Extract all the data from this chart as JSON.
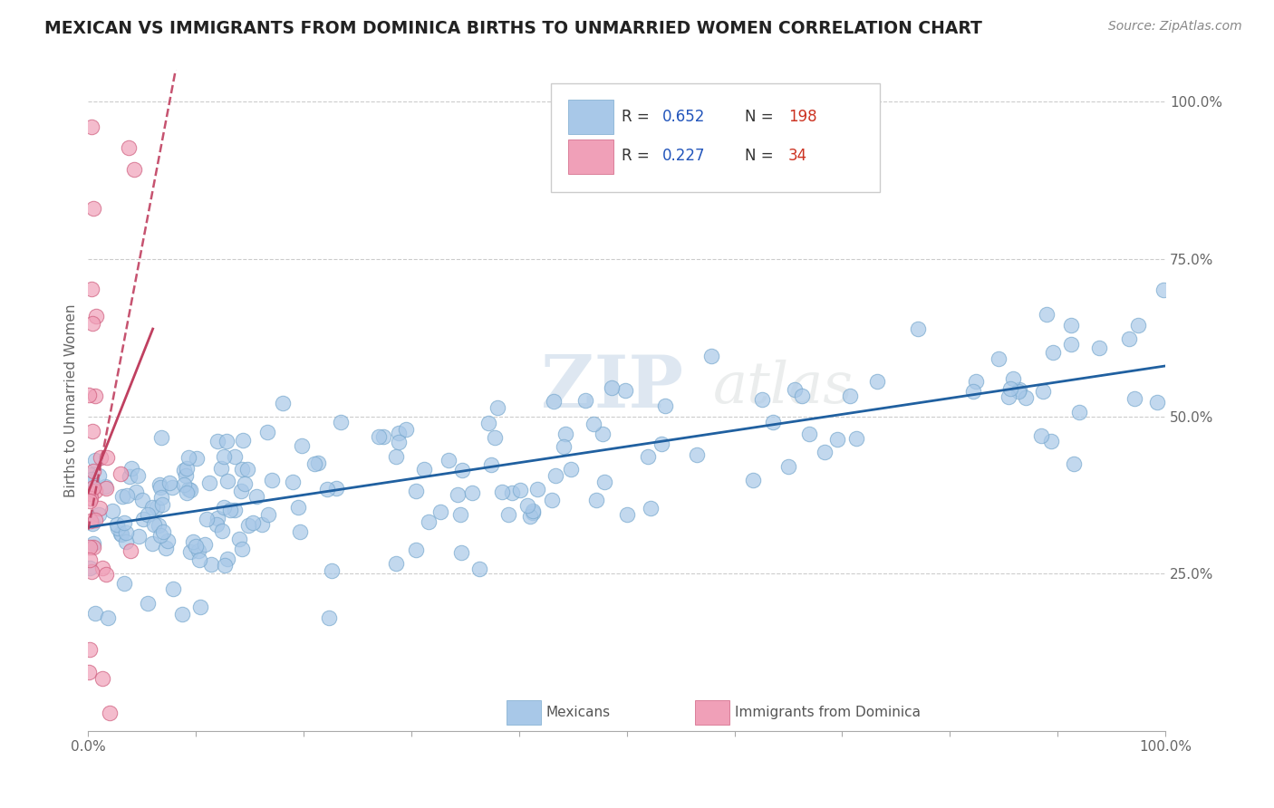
{
  "title": "MEXICAN VS IMMIGRANTS FROM DOMINICA BIRTHS TO UNMARRIED WOMEN CORRELATION CHART",
  "source": "Source: ZipAtlas.com",
  "ylabel": "Births to Unmarried Women",
  "xlim": [
    0,
    1
  ],
  "ylim": [
    0,
    1.05
  ],
  "xtick_labels": [
    "0.0%",
    "",
    "",
    "",
    "",
    "",
    "",
    "",
    "",
    "",
    "100.0%"
  ],
  "ytick_labels_right": [
    "25.0%",
    "50.0%",
    "75.0%",
    "100.0%"
  ],
  "yticks_right": [
    0.25,
    0.5,
    0.75,
    1.0
  ],
  "blue_R": 0.652,
  "blue_N": 198,
  "pink_R": 0.227,
  "pink_N": 34,
  "blue_color": "#A8C8E8",
  "blue_edge_color": "#7AAACF",
  "blue_line_color": "#2060A0",
  "pink_color": "#F0A0B8",
  "pink_edge_color": "#D06080",
  "pink_line_color": "#C04060",
  "background_color": "#FFFFFF",
  "grid_color": "#CCCCCC",
  "title_color": "#222222",
  "watermark_color": "#DDDDDD",
  "watermark_text": "ZIPAtlas",
  "legend_R_color": "#2255BB",
  "legend_N_color": "#CC3322",
  "blue_seed": 101,
  "pink_seed": 202
}
